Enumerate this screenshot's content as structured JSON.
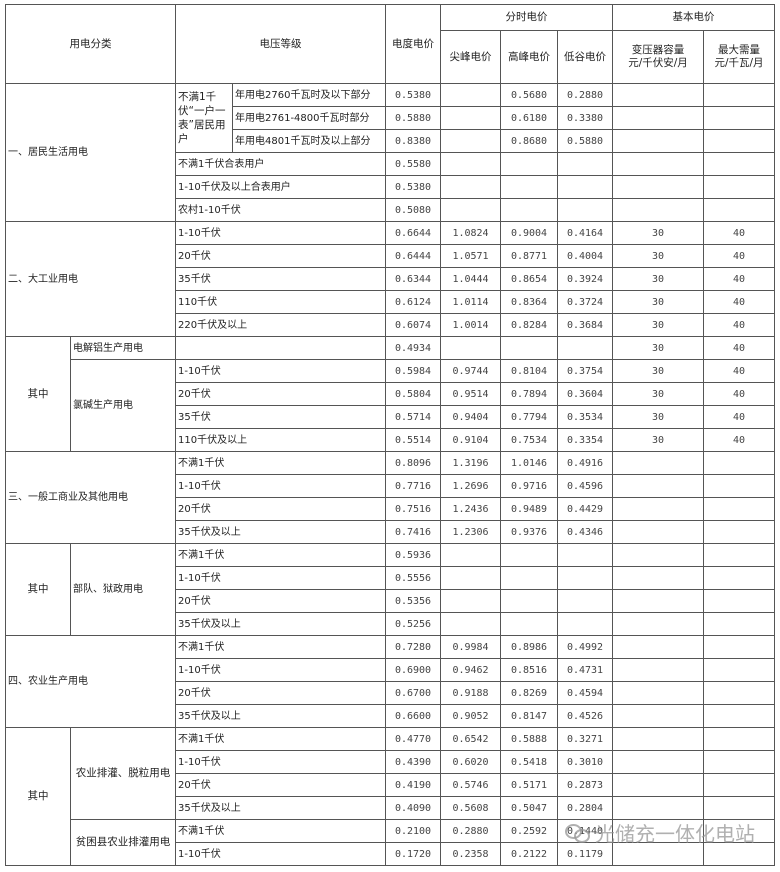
{
  "header": {
    "category": "用电分类",
    "voltage": "电压等级",
    "base_price": "电度电价",
    "tou_group": "分时电价",
    "peak_sharp": "尖峰电价",
    "peak": "高峰电价",
    "valley": "低谷电价",
    "basic_group": "基本电价",
    "capacity": "变压器容量\n元/千伏安/月",
    "demand": "最大需量\n元/千瓦/月"
  },
  "labels": {
    "residential": "一、居民生活用电",
    "residential_sub": "不满1千伏“一户一表”居民用户",
    "large_industry": "二、大工业用电",
    "of_which": "其中",
    "aluminum": "电解铝生产用电",
    "chlor_alkali": "氯碱生产用电",
    "general": "三、一般工商业及其他用电",
    "military": "部队、狱政用电",
    "agriculture": "四、农业生产用电",
    "irrigation": "农业排灌、脱粒用电",
    "poor_county": "贫困县农业排灌用电"
  },
  "rows": [
    {
      "voltage": "年用电2760千瓦时及以下部分",
      "base": "0.5380",
      "sharp": "",
      "peak": "0.5680",
      "valley": "0.2880",
      "capacity": "",
      "demand": ""
    },
    {
      "voltage": "年用电2761-4800千瓦时部分",
      "base": "0.5880",
      "sharp": "",
      "peak": "0.6180",
      "valley": "0.3380",
      "capacity": "",
      "demand": ""
    },
    {
      "voltage": "年用电4801千瓦时及以上部分",
      "base": "0.8380",
      "sharp": "",
      "peak": "0.8680",
      "valley": "0.5880",
      "capacity": "",
      "demand": ""
    },
    {
      "voltage": "不满1千伏合表用户",
      "base": "0.5580",
      "sharp": "",
      "peak": "",
      "valley": "",
      "capacity": "",
      "demand": ""
    },
    {
      "voltage": "1-10千伏及以上合表用户",
      "base": "0.5380",
      "sharp": "",
      "peak": "",
      "valley": "",
      "capacity": "",
      "demand": ""
    },
    {
      "voltage": "农村1-10千伏",
      "base": "0.5080",
      "sharp": "",
      "peak": "",
      "valley": "",
      "capacity": "",
      "demand": ""
    },
    {
      "voltage": "1-10千伏",
      "base": "0.6644",
      "sharp": "1.0824",
      "peak": "0.9004",
      "valley": "0.4164",
      "capacity": "30",
      "demand": "40"
    },
    {
      "voltage": "20千伏",
      "base": "0.6444",
      "sharp": "1.0571",
      "peak": "0.8771",
      "valley": "0.4004",
      "capacity": "30",
      "demand": "40"
    },
    {
      "voltage": "35千伏",
      "base": "0.6344",
      "sharp": "1.0444",
      "peak": "0.8654",
      "valley": "0.3924",
      "capacity": "30",
      "demand": "40"
    },
    {
      "voltage": "110千伏",
      "base": "0.6124",
      "sharp": "1.0114",
      "peak": "0.8364",
      "valley": "0.3724",
      "capacity": "30",
      "demand": "40"
    },
    {
      "voltage": "220千伏及以上",
      "base": "0.6074",
      "sharp": "1.0014",
      "peak": "0.8284",
      "valley": "0.3684",
      "capacity": "30",
      "demand": "40"
    },
    {
      "voltage": "",
      "base": "0.4934",
      "sharp": "",
      "peak": "",
      "valley": "",
      "capacity": "30",
      "demand": "40"
    },
    {
      "voltage": "1-10千伏",
      "base": "0.5984",
      "sharp": "0.9744",
      "peak": "0.8104",
      "valley": "0.3754",
      "capacity": "30",
      "demand": "40"
    },
    {
      "voltage": "20千伏",
      "base": "0.5804",
      "sharp": "0.9514",
      "peak": "0.7894",
      "valley": "0.3604",
      "capacity": "30",
      "demand": "40"
    },
    {
      "voltage": "35千伏",
      "base": "0.5714",
      "sharp": "0.9404",
      "peak": "0.7794",
      "valley": "0.3534",
      "capacity": "30",
      "demand": "40"
    },
    {
      "voltage": "110千伏及以上",
      "base": "0.5514",
      "sharp": "0.9104",
      "peak": "0.7534",
      "valley": "0.3354",
      "capacity": "30",
      "demand": "40"
    },
    {
      "voltage": "不满1千伏",
      "base": "0.8096",
      "sharp": "1.3196",
      "peak": "1.0146",
      "valley": "0.4916",
      "capacity": "",
      "demand": ""
    },
    {
      "voltage": "1-10千伏",
      "base": "0.7716",
      "sharp": "1.2696",
      "peak": "0.9716",
      "valley": "0.4596",
      "capacity": "",
      "demand": ""
    },
    {
      "voltage": "20千伏",
      "base": "0.7516",
      "sharp": "1.2436",
      "peak": "0.9489",
      "valley": "0.4429",
      "capacity": "",
      "demand": ""
    },
    {
      "voltage": "35千伏及以上",
      "base": "0.7416",
      "sharp": "1.2306",
      "peak": "0.9376",
      "valley": "0.4346",
      "capacity": "",
      "demand": ""
    },
    {
      "voltage": "不满1千伏",
      "base": "0.5936",
      "sharp": "",
      "peak": "",
      "valley": "",
      "capacity": "",
      "demand": ""
    },
    {
      "voltage": "1-10千伏",
      "base": "0.5556",
      "sharp": "",
      "peak": "",
      "valley": "",
      "capacity": "",
      "demand": ""
    },
    {
      "voltage": "20千伏",
      "base": "0.5356",
      "sharp": "",
      "peak": "",
      "valley": "",
      "capacity": "",
      "demand": ""
    },
    {
      "voltage": "35千伏及以上",
      "base": "0.5256",
      "sharp": "",
      "peak": "",
      "valley": "",
      "capacity": "",
      "demand": ""
    },
    {
      "voltage": "不满1千伏",
      "base": "0.7280",
      "sharp": "0.9984",
      "peak": "0.8986",
      "valley": "0.4992",
      "capacity": "",
      "demand": ""
    },
    {
      "voltage": "1-10千伏",
      "base": "0.6900",
      "sharp": "0.9462",
      "peak": "0.8516",
      "valley": "0.4731",
      "capacity": "",
      "demand": ""
    },
    {
      "voltage": "20千伏",
      "base": "0.6700",
      "sharp": "0.9188",
      "peak": "0.8269",
      "valley": "0.4594",
      "capacity": "",
      "demand": ""
    },
    {
      "voltage": "35千伏及以上",
      "base": "0.6600",
      "sharp": "0.9052",
      "peak": "0.8147",
      "valley": "0.4526",
      "capacity": "",
      "demand": ""
    },
    {
      "voltage": "不满1千伏",
      "base": "0.4770",
      "sharp": "0.6542",
      "peak": "0.5888",
      "valley": "0.3271",
      "capacity": "",
      "demand": ""
    },
    {
      "voltage": "1-10千伏",
      "base": "0.4390",
      "sharp": "0.6020",
      "peak": "0.5418",
      "valley": "0.3010",
      "capacity": "",
      "demand": ""
    },
    {
      "voltage": "20千伏",
      "base": "0.4190",
      "sharp": "0.5746",
      "peak": "0.5171",
      "valley": "0.2873",
      "capacity": "",
      "demand": ""
    },
    {
      "voltage": "35千伏及以上",
      "base": "0.4090",
      "sharp": "0.5608",
      "peak": "0.5047",
      "valley": "0.2804",
      "capacity": "",
      "demand": ""
    },
    {
      "voltage": "不满1千伏",
      "base": "0.2100",
      "sharp": "0.2880",
      "peak": "0.2592",
      "valley": "0.1440",
      "capacity": "",
      "demand": ""
    },
    {
      "voltage": "1-10千伏",
      "base": "0.1720",
      "sharp": "0.2358",
      "peak": "0.2122",
      "valley": "0.1179",
      "capacity": "",
      "demand": ""
    }
  ],
  "watermark": {
    "text": "光储充一体化电站",
    "icon": "wechat-icon"
  }
}
